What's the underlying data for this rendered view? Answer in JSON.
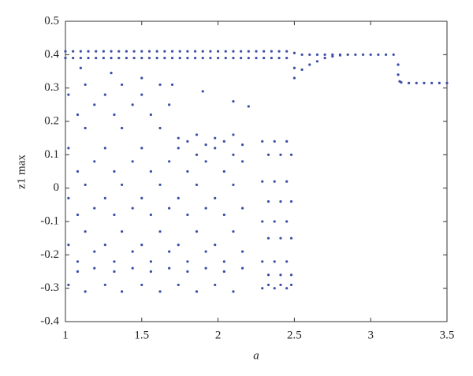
{
  "chart_data": {
    "type": "scatter",
    "xlabel": "a",
    "ylabel": "z1 max",
    "xlim": [
      1,
      3.5
    ],
    "xticks": [
      1,
      1.5,
      2,
      2.5,
      3,
      3.5
    ],
    "ylim": [
      -0.4,
      0.5
    ],
    "yticks": [
      -0.4,
      -0.3,
      -0.2,
      -0.1,
      0,
      0.1,
      0.2,
      0.3,
      0.4,
      0.5
    ],
    "color": "#3b4ea6",
    "x": [
      1,
      1.05,
      1.1,
      1.15,
      1.2,
      1.25,
      1.3,
      1.35,
      1.4,
      1.45,
      1.5,
      1.55,
      1.6,
      1.65,
      1.7,
      1.75,
      1.8,
      1.85,
      1.9,
      1.95,
      2,
      2.05,
      2.1,
      2.15,
      2.2,
      2.25,
      2.3,
      2.35,
      2.4,
      2.45,
      2.5,
      1,
      1.05,
      1.1,
      1.15,
      1.2,
      1.25,
      1.3,
      1.35,
      1.4,
      1.45,
      1.5,
      1.55,
      1.6,
      1.65,
      1.7,
      1.75,
      1.8,
      1.85,
      1.9,
      1.95,
      2,
      2.05,
      2.1,
      2.15,
      2.2,
      2.25,
      2.3,
      2.35,
      2.4,
      2.45,
      2.5,
      2.55,
      2.6,
      2.65,
      2.7,
      2.75,
      2.8,
      2.5,
      2.55,
      2.6,
      2.65,
      2.7,
      2.75,
      2.8,
      2.85,
      2.9,
      2.95,
      3,
      3.05,
      3.1,
      3.15,
      3.18,
      3.18,
      3.19,
      3.2,
      3.25,
      3.3,
      3.35,
      3.4,
      3.45,
      3.5,
      1.1,
      1.3,
      1.5,
      1.7,
      1.9,
      2.1,
      2.2,
      1.02,
      1.02,
      1.02,
      1.02,
      1.02,
      1.08,
      1.08,
      1.08,
      1.08,
      1.08,
      1.13,
      1.13,
      1.13,
      1.13,
      1.13,
      1.19,
      1.19,
      1.19,
      1.19,
      1.19,
      1.26,
      1.26,
      1.26,
      1.26,
      1.26,
      1.32,
      1.32,
      1.32,
      1.32,
      1.32,
      1.37,
      1.37,
      1.37,
      1.37,
      1.37,
      1.44,
      1.44,
      1.44,
      1.44,
      1.44,
      1.5,
      1.5,
      1.5,
      1.5,
      1.5,
      1.56,
      1.56,
      1.56,
      1.56,
      1.56,
      1.62,
      1.62,
      1.62,
      1.62,
      1.62,
      1.68,
      1.68,
      1.68,
      1.68,
      1.68,
      1.74,
      1.74,
      1.74,
      1.74,
      1.74,
      1.8,
      1.8,
      1.8,
      1.8,
      1.8,
      1.86,
      1.86,
      1.86,
      1.86,
      1.86,
      1.92,
      1.92,
      1.92,
      1.92,
      1.92,
      1.98,
      1.98,
      1.98,
      1.98,
      1.98,
      2.04,
      2.04,
      2.04,
      2.04,
      2.04,
      2.1,
      2.1,
      2.1,
      2.1,
      2.1,
      2.16,
      2.16,
      2.16,
      2.16,
      2.16,
      2.29,
      2.29,
      2.29,
      2.29,
      2.29,
      2.33,
      2.33,
      2.33,
      2.33,
      2.33,
      2.37,
      2.37,
      2.37,
      2.37,
      2.37,
      2.41,
      2.41,
      2.41,
      2.41,
      2.41,
      2.45,
      2.45,
      2.45,
      2.45,
      2.45,
      2.48,
      2.48,
      2.48,
      2.48,
      2.48
    ],
    "y": [
      0.41,
      0.41,
      0.41,
      0.41,
      0.41,
      0.41,
      0.41,
      0.41,
      0.41,
      0.41,
      0.41,
      0.41,
      0.41,
      0.41,
      0.41,
      0.41,
      0.41,
      0.41,
      0.41,
      0.41,
      0.41,
      0.41,
      0.41,
      0.41,
      0.41,
      0.41,
      0.41,
      0.41,
      0.41,
      0.41,
      0.405,
      0.39,
      0.39,
      0.39,
      0.39,
      0.39,
      0.39,
      0.39,
      0.39,
      0.39,
      0.39,
      0.39,
      0.39,
      0.39,
      0.39,
      0.39,
      0.39,
      0.39,
      0.39,
      0.39,
      0.39,
      0.39,
      0.39,
      0.39,
      0.39,
      0.39,
      0.39,
      0.39,
      0.39,
      0.39,
      0.39,
      0.36,
      0.4,
      0.4,
      0.4,
      0.4,
      0.4,
      0.4,
      0.33,
      0.355,
      0.37,
      0.38,
      0.39,
      0.395,
      0.398,
      0.4,
      0.4,
      0.4,
      0.4,
      0.4,
      0.4,
      0.4,
      0.37,
      0.34,
      0.32,
      0.317,
      0.315,
      0.315,
      0.315,
      0.315,
      0.315,
      0.315,
      0.36,
      0.345,
      0.33,
      0.31,
      0.29,
      0.26,
      0.245,
      0.28,
      0.12,
      -0.03,
      -0.17,
      -0.29,
      0.22,
      0.05,
      -0.08,
      -0.22,
      -0.25,
      0.31,
      0.18,
      0.01,
      -0.13,
      -0.31,
      0.25,
      0.08,
      -0.06,
      -0.19,
      -0.24,
      0.28,
      0.12,
      -0.03,
      -0.17,
      -0.29,
      0.22,
      0.05,
      -0.08,
      -0.22,
      -0.25,
      0.31,
      0.18,
      0.01,
      -0.13,
      -0.31,
      0.25,
      0.08,
      -0.06,
      -0.19,
      -0.24,
      0.28,
      0.12,
      -0.03,
      -0.17,
      -0.29,
      0.22,
      0.05,
      -0.08,
      -0.22,
      -0.25,
      0.31,
      0.18,
      0.01,
      -0.13,
      -0.31,
      0.25,
      0.08,
      -0.06,
      -0.19,
      -0.24,
      0.15,
      0.12,
      -0.03,
      -0.17,
      -0.29,
      0.14,
      0.05,
      -0.08,
      -0.22,
      -0.25,
      0.16,
      0.1,
      0.01,
      -0.13,
      -0.31,
      0.13,
      0.08,
      -0.06,
      -0.19,
      -0.24,
      0.15,
      0.12,
      -0.03,
      -0.17,
      -0.29,
      0.14,
      0.05,
      -0.08,
      -0.22,
      -0.25,
      0.16,
      0.1,
      0.01,
      -0.13,
      -0.31,
      0.13,
      0.08,
      -0.06,
      -0.19,
      -0.24,
      0.14,
      0.02,
      -0.1,
      -0.22,
      -0.3,
      0.1,
      -0.04,
      -0.15,
      -0.26,
      -0.29,
      0.14,
      0.02,
      -0.1,
      -0.22,
      -0.3,
      0.1,
      -0.04,
      -0.15,
      -0.26,
      -0.29,
      0.14,
      0.02,
      -0.1,
      -0.22,
      -0.3,
      0.1,
      -0.04,
      -0.15,
      -0.26,
      -0.29
    ]
  }
}
